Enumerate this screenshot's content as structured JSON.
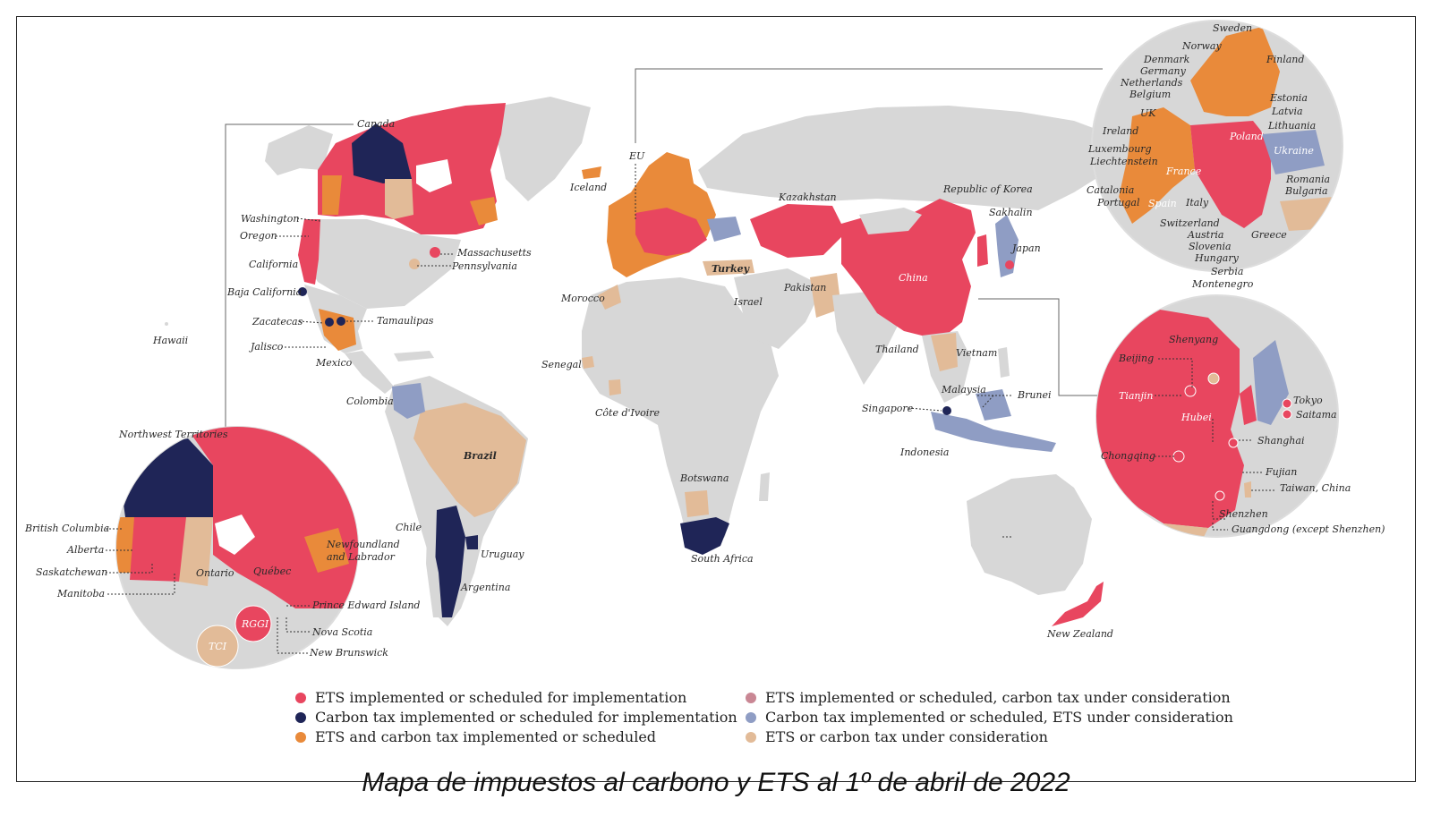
{
  "colors": {
    "ets": "#e8465f",
    "carbon_tax": "#1f2557",
    "both": "#e98a3a",
    "ets_tax_consid": "#c98794",
    "tax_ets_consid": "#8f9dc4",
    "under_consid": "#e2bb98",
    "none": "#d7d7d7"
  },
  "caption": "Mapa de impuestos al carbono y ETS al 1º de abril de 2022",
  "legend": [
    {
      "label": "ETS implemented or scheduled for implementation",
      "color": "#e8465f"
    },
    {
      "label": "Carbon tax implemented or scheduled for implementation",
      "color": "#1f2557"
    },
    {
      "label": "ETS and carbon tax implemented or scheduled",
      "color": "#e98a3a"
    },
    {
      "label": "ETS implemented or scheduled, carbon tax under consideration",
      "color": "#c98794"
    },
    {
      "label": "Carbon tax implemented or scheduled, ETS under consideration",
      "color": "#8f9dc4"
    },
    {
      "label": "ETS or carbon tax under consideration",
      "color": "#e2bb98"
    }
  ],
  "labels": {
    "canada": "Canada",
    "washington": "Washington",
    "oregon": "Oregon",
    "california": "California",
    "baja": "Baja California",
    "zacatecas": "Zacatecas",
    "tamaulipas": "Tamaulipas",
    "jalisco": "Jalisco",
    "mexico": "Mexico",
    "massachusetts": "Massachusetts",
    "pennsylvania": "Pennsylvania",
    "hawaii": "Hawaii",
    "colombia": "Colombia",
    "brazil": "Brazil",
    "chile": "Chile",
    "uruguay": "Uruguay",
    "argentina": "Argentina",
    "eu": "EU",
    "iceland": "Iceland",
    "morocco": "Morocco",
    "senegal": "Senegal",
    "cote": "Côte d'Ivoire",
    "turkey": "Turkey",
    "israel": "Israel",
    "botswana": "Botswana",
    "south_africa": "South Africa",
    "kazakhstan": "Kazakhstan",
    "pakistan": "Pakistan",
    "china": "China",
    "korea": "Republic of Korea",
    "sakhalin": "Sakhalin",
    "japan": "Japan",
    "thailand": "Thailand",
    "vietnam": "Vietnam",
    "malaysia": "Malaysia",
    "brunei": "Brunei",
    "singapore": "Singapore",
    "indonesia": "Indonesia",
    "new_zealand": "New Zealand",
    "nwt": "Northwest Territories",
    "bc": "British Columbia",
    "alberta": "Alberta",
    "saskatchewan": "Saskatchewan",
    "manitoba": "Manitoba",
    "ontario": "Ontario",
    "quebec": "Québec",
    "newfoundland_1": "Newfoundland",
    "newfoundland_2": "and Labrador",
    "pei": "Prince Edward Island",
    "nova_scotia": "Nova Scotia",
    "new_brunswick": "New Brunswick",
    "rggi": "RGGI",
    "tci": "TCI",
    "sweden": "Sweden",
    "norway": "Norway",
    "finland": "Finland",
    "denmark": "Denmark",
    "germany": "Germany",
    "netherlands": "Netherlands",
    "belgium": "Belgium",
    "uk": "UK",
    "ireland": "Ireland",
    "estonia": "Estonia",
    "latvia": "Latvia",
    "lithuania": "Lithuania",
    "poland": "Poland",
    "luxembourg": "Luxembourg",
    "liechtenstein": "Liechtenstein",
    "ukraine": "Ukraine",
    "france": "France",
    "romania": "Romania",
    "bulgaria": "Bulgaria",
    "catalonia": "Catalonia",
    "portugal": "Portugal",
    "spain": "Spain",
    "italy": "Italy",
    "switzerland": "Switzerland",
    "austria": "Austria",
    "slovenia": "Slovenia",
    "hungary": "Hungary",
    "serbia": "Serbia",
    "montenegro": "Montenegro",
    "greece": "Greece",
    "shenyang": "Shenyang",
    "beijing": "Beijing",
    "tianjin": "Tianjin",
    "hubei": "Hubei",
    "chongqing": "Chongqing",
    "shanghai": "Shanghai",
    "fujian": "Fujian",
    "taiwan": "Taiwan, China",
    "shenzhen": "Shenzhen",
    "guangdong": "Guangdong (except Shenzhen)",
    "tokyo": "Tokyo",
    "saitama": "Saitama"
  }
}
